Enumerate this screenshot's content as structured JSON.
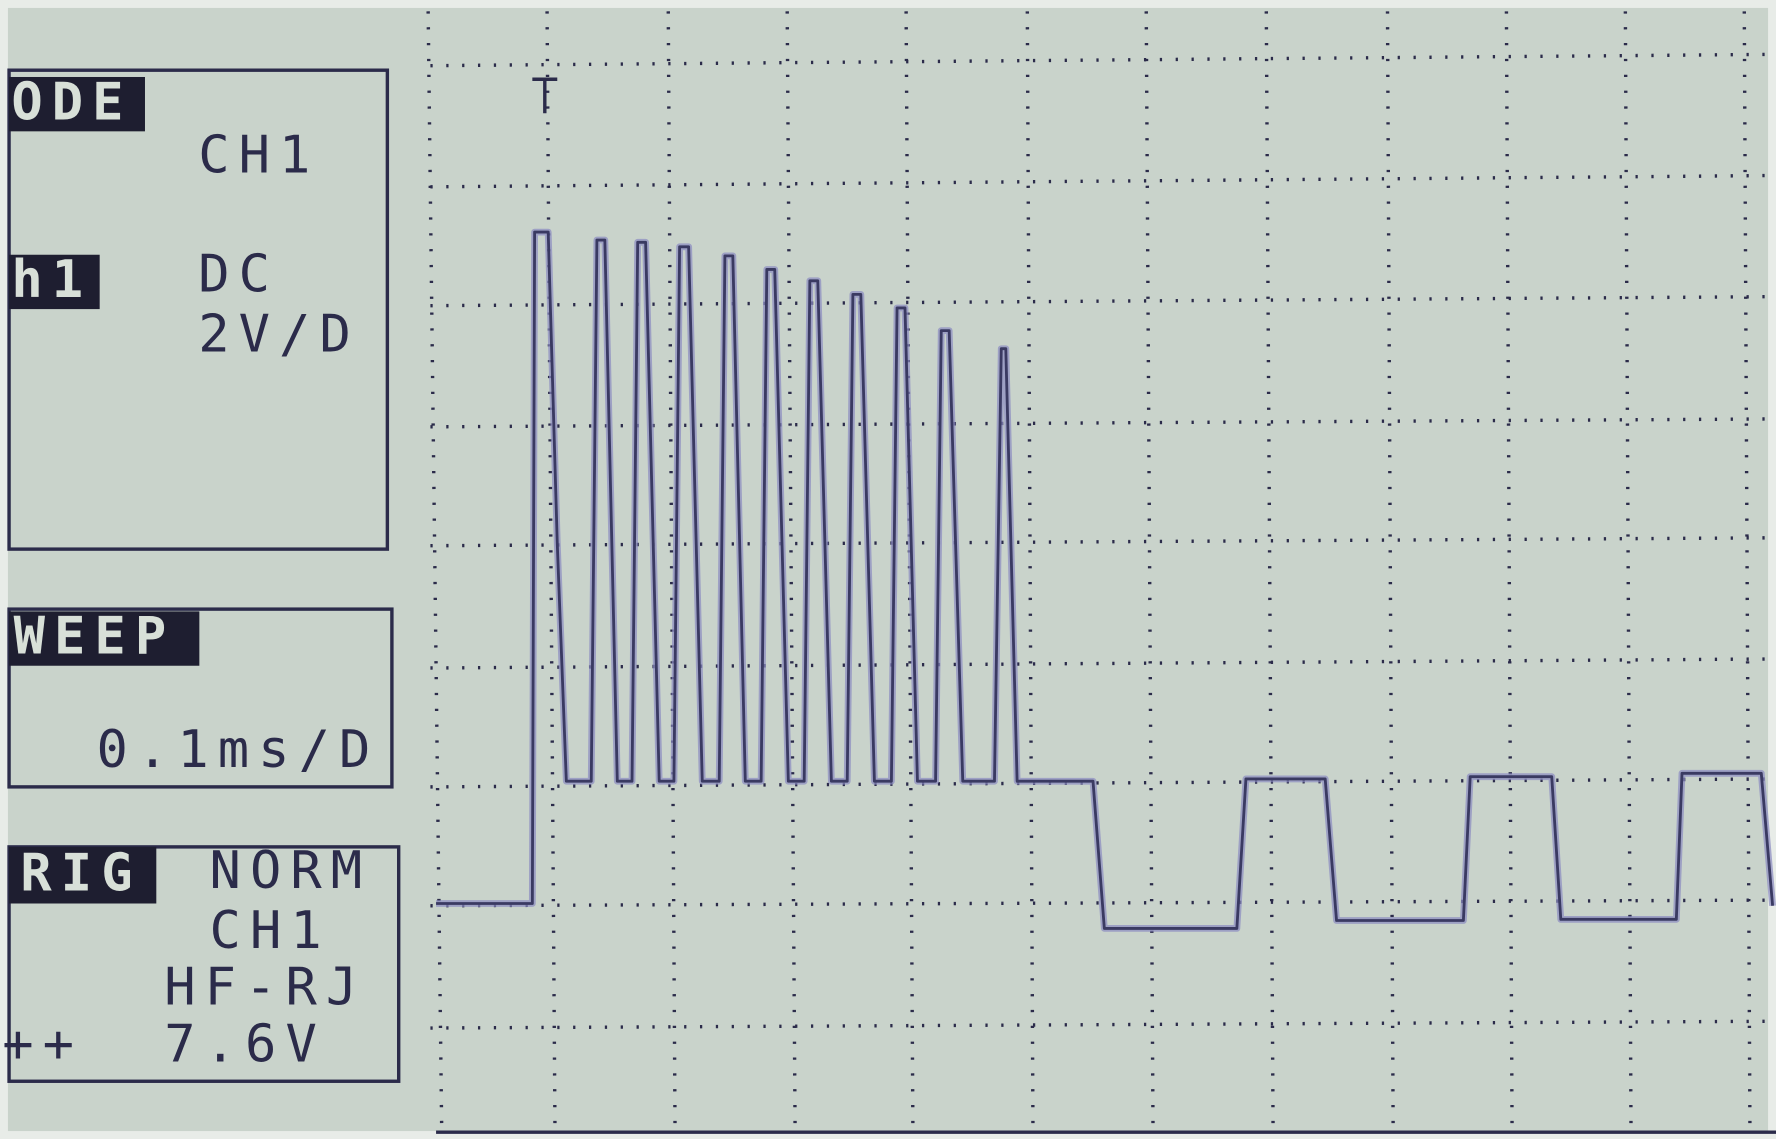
{
  "mode": {
    "label": "ODE",
    "source": "CH1"
  },
  "channel": {
    "label": "h1",
    "coupling": "DC",
    "scale": "2V/D"
  },
  "sweep": {
    "label": "WEEP",
    "rate": "0.1ms/D"
  },
  "trigger": {
    "label": "RIG",
    "mode": "NORM",
    "source": "CH1",
    "filter": "HF-RJ",
    "slope": "++",
    "level": "7.6V"
  }
}
